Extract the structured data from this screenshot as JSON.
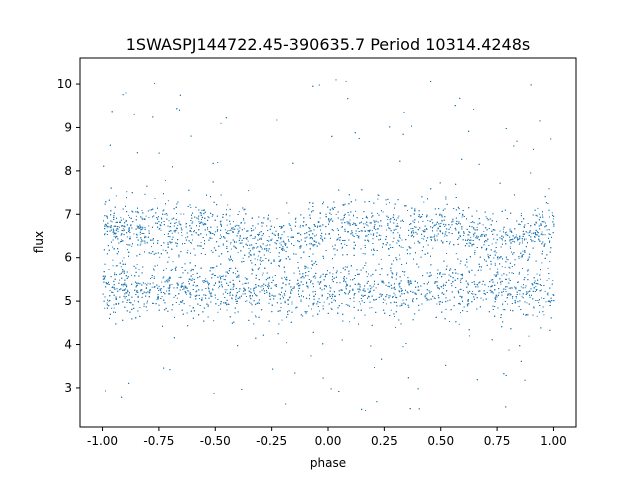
{
  "chart_data": {
    "type": "scatter",
    "title": "1SWASPJ144722.45-390635.7 Period 10314.4248s",
    "xlabel": "phase",
    "ylabel": "flux",
    "xlim": [
      -1.1,
      1.1
    ],
    "ylim": [
      2.1,
      10.6
    ],
    "xticks": [
      "-1.00",
      "-0.75",
      "-0.50",
      "-0.25",
      "0.00",
      "0.25",
      "0.50",
      "0.75",
      "1.00"
    ],
    "yticks": [
      "3",
      "4",
      "5",
      "6",
      "7",
      "8",
      "9",
      "10"
    ],
    "grid": false,
    "legend": "none",
    "point_color": "#1f77b4",
    "series": [
      {
        "x_range": [
          -1.0,
          1.0
        ],
        "dense_band_y": [
          4.9,
          7.3
        ],
        "bimodal_levels_y": [
          5.3,
          6.7
        ],
        "outlier_y_range": [
          2.4,
          10.2
        ],
        "note_profile": [
          {
            "x": -1.0,
            "y_upper": 6.7,
            "y_lower": 5.3
          },
          {
            "x": -0.5,
            "y_upper": 6.7,
            "y_lower": 5.3
          },
          {
            "x": -0.25,
            "y_upper": 6.3,
            "y_lower": 5.2
          },
          {
            "x": 0.0,
            "y_upper": 6.7,
            "y_lower": 5.3
          },
          {
            "x": 0.5,
            "y_upper": 6.7,
            "y_lower": 5.3
          },
          {
            "x": 0.75,
            "y_upper": 6.3,
            "y_lower": 5.2
          },
          {
            "x": 1.0,
            "y_upper": 6.7,
            "y_lower": 5.3
          }
        ]
      }
    ]
  }
}
